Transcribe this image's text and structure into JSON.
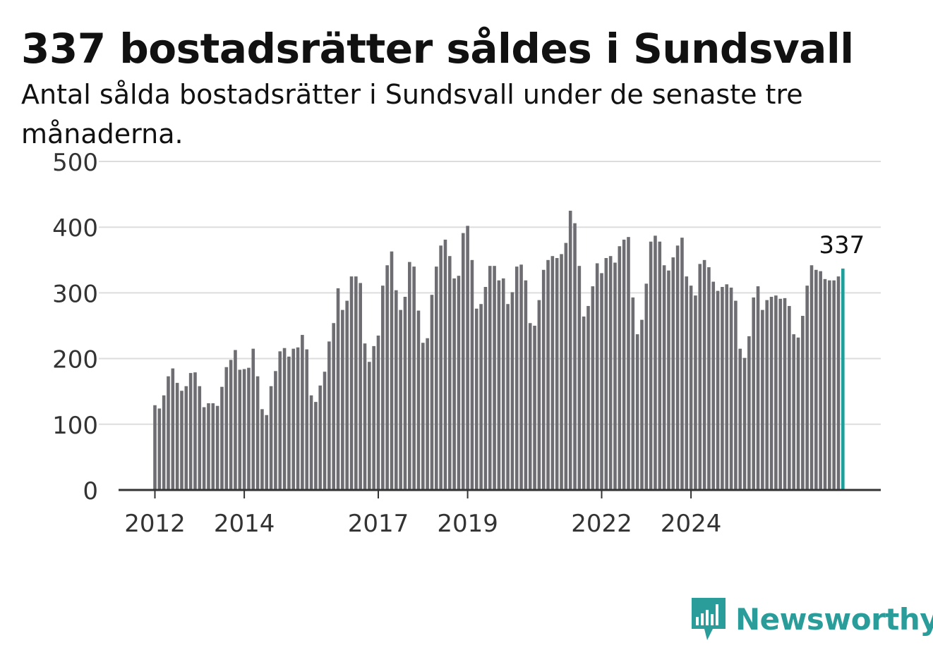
{
  "title": "337 bostadsrätter såldes i Sundsvall",
  "subtitle": "Antal sålda bostadsrätter i Sundsvall under de senaste tre månaderna.",
  "brand": {
    "name": "Newsworthy",
    "icon": "newsworthy-logo-icon",
    "color": "#2a9d9a"
  },
  "chart_data": {
    "type": "bar",
    "title": "337 bostadsrätter såldes i Sundsvall",
    "subtitle": "Antal sålda bostadsrätter i Sundsvall under de senaste tre månaderna.",
    "xlabel": "",
    "ylabel": "",
    "ylim": [
      0,
      500
    ],
    "yticks": [
      0,
      100,
      200,
      300,
      400,
      500
    ],
    "xticks": [
      {
        "label": "2012",
        "index": 0
      },
      {
        "label": "2014",
        "index": 20
      },
      {
        "label": "2017",
        "index": 50
      },
      {
        "label": "2019",
        "index": 70
      },
      {
        "label": "2022",
        "index": 100
      },
      {
        "label": "2024",
        "index": 120
      }
    ],
    "grid": true,
    "bar_color": "#6e6d72",
    "highlight_color": "#1f9e9a",
    "highlight_label": "337",
    "values": [
      129,
      124,
      144,
      173,
      185,
      163,
      151,
      158,
      178,
      179,
      158,
      126,
      132,
      132,
      128,
      157,
      187,
      198,
      213,
      183,
      184,
      186,
      215,
      173,
      123,
      114,
      158,
      181,
      211,
      216,
      203,
      215,
      217,
      236,
      214,
      144,
      134,
      159,
      180,
      226,
      254,
      307,
      274,
      288,
      325,
      325,
      315,
      223,
      195,
      219,
      235,
      311,
      342,
      363,
      304,
      274,
      294,
      347,
      340,
      273,
      224,
      231,
      297,
      340,
      372,
      381,
      356,
      322,
      326,
      391,
      402,
      350,
      276,
      283,
      309,
      341,
      341,
      319,
      322,
      283,
      301,
      340,
      343,
      319,
      254,
      250,
      289,
      335,
      350,
      356,
      353,
      359,
      376,
      425,
      406,
      341,
      264,
      280,
      310,
      345,
      330,
      353,
      356,
      346,
      371,
      381,
      385,
      293,
      237,
      259,
      314,
      378,
      387,
      378,
      342,
      334,
      354,
      372,
      384,
      325,
      311,
      296,
      344,
      350,
      339,
      317,
      303,
      309,
      313,
      308,
      288,
      215,
      201,
      234,
      293,
      310,
      274,
      289,
      294,
      296,
      291,
      292,
      280,
      237,
      232,
      265,
      311,
      342,
      335,
      333,
      321,
      319,
      319,
      325,
      337
    ]
  }
}
